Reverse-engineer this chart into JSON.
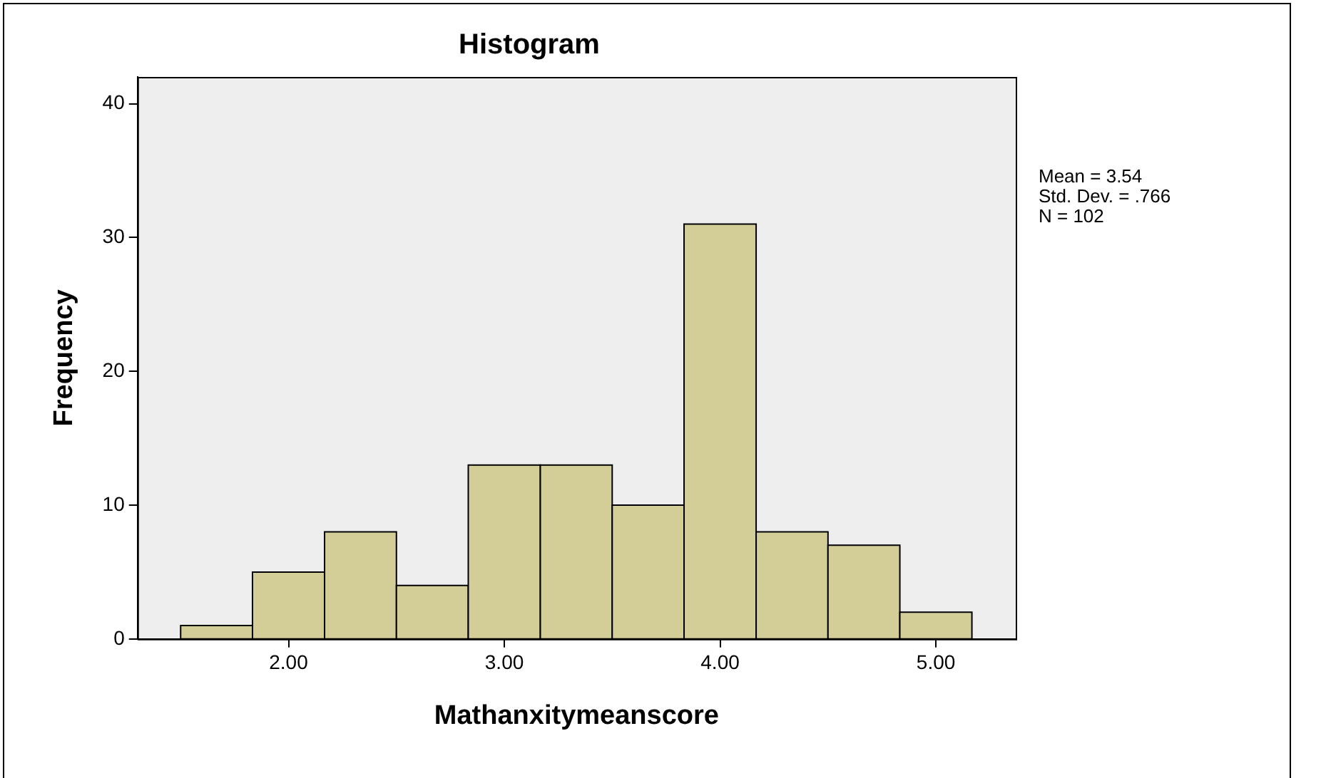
{
  "chart_data": {
    "type": "histogram",
    "title": "Histogram",
    "xlabel": "Mathanxitymeanscore",
    "ylabel": "Frequency",
    "bins": [
      1.5,
      1.833,
      2.167,
      2.5,
      2.833,
      3.167,
      3.5,
      3.833,
      4.167,
      4.5,
      4.833,
      5.167
    ],
    "values": [
      1,
      5,
      8,
      4,
      13,
      13,
      10,
      31,
      8,
      7,
      2
    ],
    "color": "#d3ce97",
    "xlim": [
      1.3,
      5.37
    ],
    "xticks": [
      {
        "value": 2,
        "label": "2.00"
      },
      {
        "value": 3,
        "label": "3.00"
      },
      {
        "value": 4,
        "label": "4.00"
      },
      {
        "value": 5,
        "label": "5.00"
      }
    ],
    "ylim": [
      0,
      42
    ],
    "yticks": [
      0,
      10,
      20,
      30,
      40
    ],
    "grid": false,
    "legend": false,
    "annotations": [
      "Mean = 3.54",
      "Std. Dev. = .766",
      "N = 102"
    ]
  }
}
